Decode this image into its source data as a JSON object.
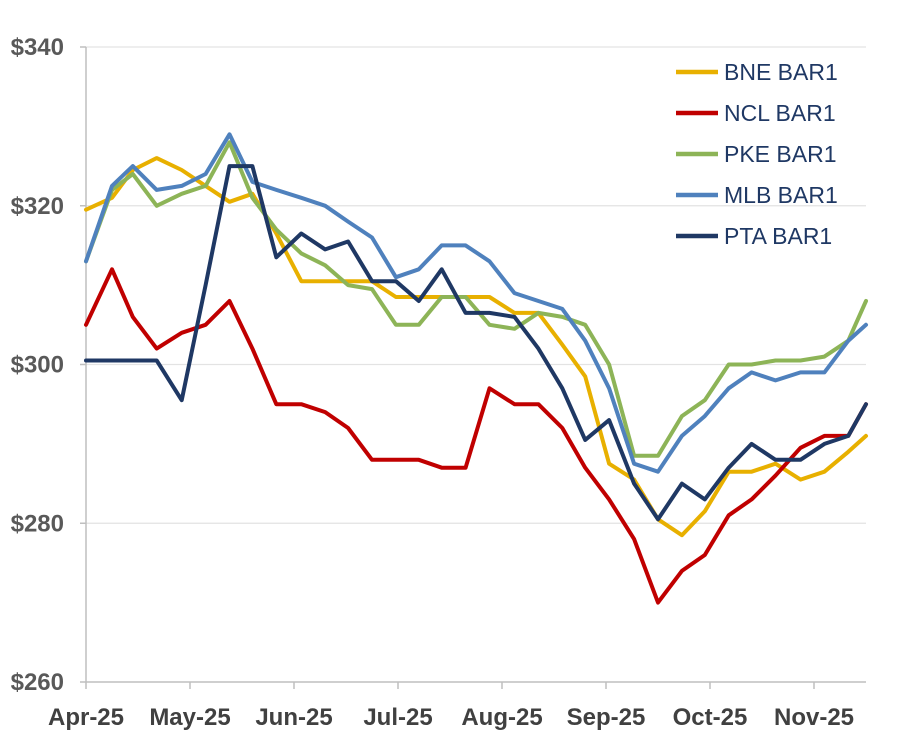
{
  "chart_data": {
    "type": "line",
    "title": "",
    "xlabel": "",
    "ylabel": "",
    "ylim": [
      260,
      340
    ],
    "y_ticks": [
      260,
      280,
      300,
      320,
      340
    ],
    "y_tick_labels": [
      "$260",
      "$280",
      "$300",
      "$320",
      "$340"
    ],
    "x_range": [
      0,
      7.5
    ],
    "x_ticks": [
      0,
      1,
      2,
      3,
      4,
      5,
      6,
      7
    ],
    "x_tick_labels": [
      "Apr-25",
      "May-25",
      "Jun-25",
      "Jul-25",
      "Aug-25",
      "Sep-25",
      "Oct-25",
      "Nov-25"
    ],
    "grid": true,
    "legend_position": "top-right",
    "series": [
      {
        "name": "BNE BAR1",
        "color": "#e8b000",
        "x": [
          0,
          0.25,
          0.45,
          0.68,
          0.92,
          1.15,
          1.38,
          1.6,
          1.83,
          2.07,
          2.3,
          2.52,
          2.75,
          2.98,
          3.2,
          3.42,
          3.65,
          3.88,
          4.12,
          4.35,
          4.58,
          4.8,
          5.03,
          5.27,
          5.5,
          5.73,
          5.95,
          6.18,
          6.4,
          6.63,
          6.87,
          7.1,
          7.33,
          7.5
        ],
        "values": [
          319.5,
          321,
          324.5,
          326,
          324.5,
          322.5,
          320.5,
          321.5,
          316.5,
          310.5,
          310.5,
          310.5,
          310.5,
          308.5,
          308.5,
          308.5,
          308.5,
          308.5,
          306.5,
          306.5,
          302.5,
          298.5,
          287.5,
          285.5,
          280.5,
          278.5,
          281.5,
          286.5,
          286.5,
          287.5,
          285.5,
          286.5,
          289,
          291
        ]
      },
      {
        "name": "NCL BAR1",
        "color": "#c00000",
        "x": [
          0,
          0.25,
          0.45,
          0.68,
          0.92,
          1.15,
          1.38,
          1.6,
          1.83,
          2.07,
          2.3,
          2.52,
          2.75,
          2.98,
          3.2,
          3.42,
          3.65,
          3.88,
          4.12,
          4.35,
          4.58,
          4.8,
          5.03,
          5.27,
          5.5,
          5.73,
          5.95,
          6.18,
          6.4,
          6.63,
          6.87,
          7.1,
          7.33,
          7.5
        ],
        "values": [
          305,
          312,
          306,
          302,
          304,
          305,
          308,
          302,
          295,
          295,
          294,
          292,
          288,
          288,
          288,
          287,
          287,
          297,
          295,
          295,
          292,
          287,
          283,
          278,
          270,
          274,
          276,
          281,
          283,
          286,
          289.5,
          291,
          291,
          295
        ]
      },
      {
        "name": "PKE BAR1",
        "color": "#8db457",
        "x": [
          0,
          0.25,
          0.45,
          0.68,
          0.92,
          1.15,
          1.38,
          1.6,
          1.83,
          2.07,
          2.3,
          2.52,
          2.75,
          2.98,
          3.2,
          3.42,
          3.65,
          3.88,
          4.12,
          4.35,
          4.58,
          4.8,
          5.03,
          5.27,
          5.5,
          5.73,
          5.95,
          6.18,
          6.4,
          6.63,
          6.87,
          7.1,
          7.33,
          7.5
        ],
        "values": [
          313,
          322,
          324,
          320,
          321.5,
          322.5,
          328,
          321,
          317,
          314,
          312.5,
          310,
          309.5,
          305,
          305,
          308.5,
          308.5,
          305,
          304.5,
          306.5,
          306,
          305,
          300,
          288.5,
          288.5,
          293.5,
          295.5,
          300,
          300,
          300.5,
          300.5,
          301,
          303,
          308
        ]
      },
      {
        "name": "MLB BAR1",
        "color": "#4f81bd",
        "x": [
          0,
          0.25,
          0.45,
          0.68,
          0.92,
          1.15,
          1.38,
          1.6,
          1.83,
          2.07,
          2.3,
          2.52,
          2.75,
          2.98,
          3.2,
          3.42,
          3.65,
          3.88,
          4.12,
          4.35,
          4.58,
          4.8,
          5.03,
          5.27,
          5.5,
          5.73,
          5.95,
          6.18,
          6.4,
          6.63,
          6.87,
          7.1,
          7.33,
          7.5
        ],
        "values": [
          313,
          322.5,
          325,
          322,
          322.5,
          324,
          329,
          323,
          322,
          321,
          320,
          318,
          316,
          311,
          312,
          315,
          315,
          313,
          309,
          308,
          307,
          303,
          297,
          287.5,
          286.5,
          291,
          293.5,
          297,
          299,
          298,
          299,
          299,
          303,
          305
        ]
      },
      {
        "name": "PTA BAR1",
        "color": "#1f3864",
        "x": [
          0,
          0.25,
          0.45,
          0.68,
          0.92,
          1.15,
          1.38,
          1.6,
          1.83,
          2.07,
          2.3,
          2.52,
          2.75,
          2.98,
          3.2,
          3.42,
          3.65,
          3.88,
          4.12,
          4.35,
          4.58,
          4.8,
          5.03,
          5.27,
          5.5,
          5.73,
          5.95,
          6.18,
          6.4,
          6.63,
          6.87,
          7.1,
          7.33,
          7.5
        ],
        "values": [
          300.5,
          300.5,
          300.5,
          300.5,
          295.5,
          310,
          325,
          325,
          313.5,
          316.5,
          314.5,
          315.5,
          310.5,
          310.5,
          308,
          312,
          306.5,
          306.5,
          306,
          302,
          297,
          290.5,
          293,
          285,
          280.5,
          285,
          283,
          287,
          290,
          288,
          288,
          290,
          291,
          295
        ]
      }
    ]
  }
}
